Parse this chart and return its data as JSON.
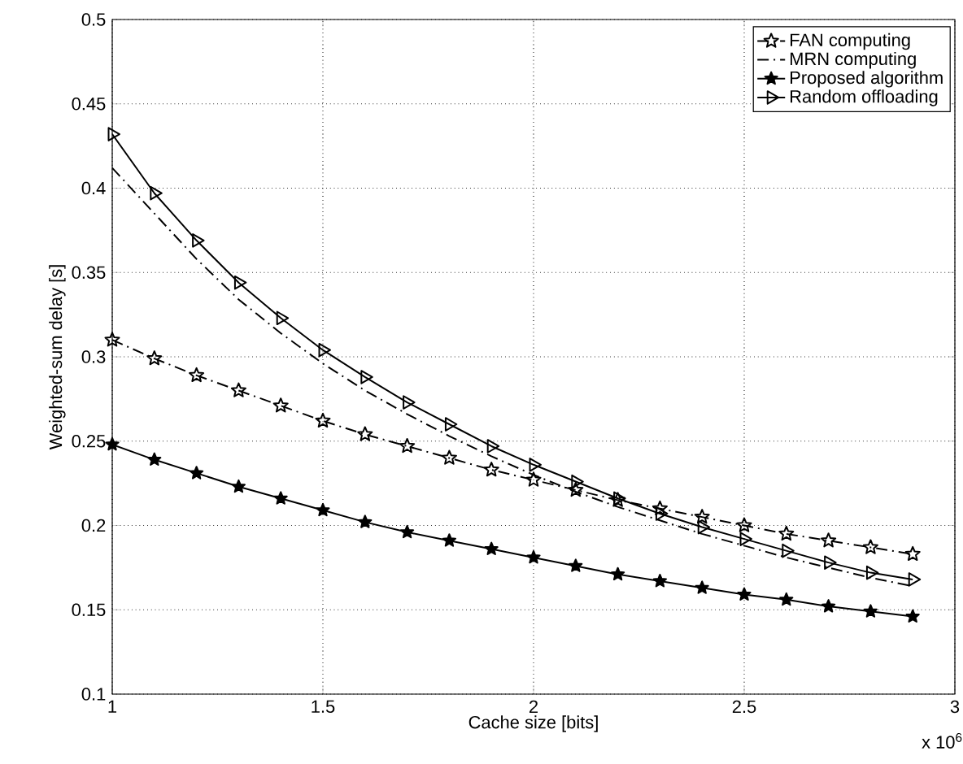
{
  "chart_data": {
    "type": "line",
    "xlabel": "Cache size [bits]",
    "ylabel": "Weighted-sum delay [s]",
    "x": [
      1.0,
      1.1,
      1.2,
      1.3,
      1.4,
      1.5,
      1.6,
      1.7,
      1.8,
      1.9,
      2.0,
      2.1,
      2.2,
      2.3,
      2.4,
      2.5,
      2.6,
      2.7,
      2.8,
      2.9
    ],
    "series": [
      {
        "name": "FAN computing",
        "color": "#000000",
        "marker": "star",
        "line_style": "dashed",
        "values": [
          0.31,
          0.299,
          0.289,
          0.28,
          0.271,
          0.262,
          0.254,
          0.247,
          0.24,
          0.233,
          0.227,
          0.221,
          0.215,
          0.21,
          0.205,
          0.2,
          0.195,
          0.191,
          0.187,
          0.183
        ]
      },
      {
        "name": "MRN computing",
        "color": "#000000",
        "marker": "none",
        "line_style": "dashed",
        "values": [
          0.412,
          0.385,
          0.358,
          0.334,
          0.314,
          0.296,
          0.28,
          0.266,
          0.253,
          0.241,
          0.23,
          0.22,
          0.211,
          0.203,
          0.195,
          0.188,
          0.181,
          0.175,
          0.169,
          0.164
        ]
      },
      {
        "name": "Proposed algorithm",
        "color": "#000000",
        "marker": "star",
        "line_style": "solid",
        "values": [
          0.248,
          0.239,
          0.231,
          0.223,
          0.216,
          0.209,
          0.202,
          0.196,
          0.191,
          0.186,
          0.181,
          0.176,
          0.171,
          0.167,
          0.163,
          0.159,
          0.156,
          0.152,
          0.149,
          0.146
        ]
      },
      {
        "name": "Random offloading",
        "color": "#000000",
        "marker": "triangle",
        "line_style": "solid",
        "values": [
          0.432,
          0.397,
          0.369,
          0.344,
          0.323,
          0.304,
          0.288,
          0.273,
          0.26,
          0.247,
          0.236,
          0.226,
          0.216,
          0.207,
          0.199,
          0.192,
          0.185,
          0.178,
          0.172,
          0.168
        ]
      }
    ],
    "xlim": [
      1,
      3
    ],
    "xticks": [
      1,
      1.5,
      2,
      2.5,
      3
    ],
    "ylim": [
      0.1,
      0.5
    ],
    "yticks": [
      0.1,
      0.15,
      0.2,
      0.25,
      0.3,
      0.35,
      0.4,
      0.45,
      0.5
    ],
    "grid": true,
    "legend": "top right",
    "annotations": [
      "x 10$^{6}$"
    ]
  }
}
